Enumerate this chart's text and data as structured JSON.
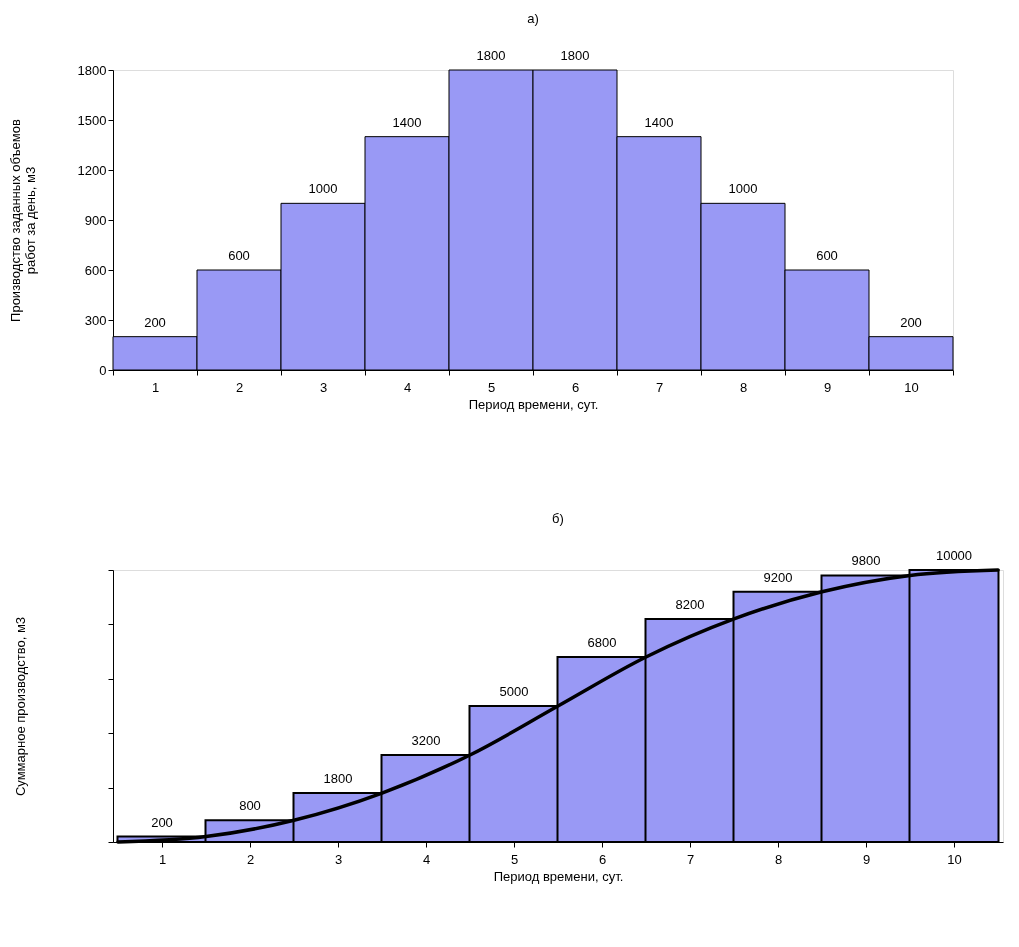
{
  "chart_data": [
    {
      "type": "bar",
      "title": "а)",
      "xlabel": "Период времени, сут.",
      "ylabel": "Производство заданных объемов работ за день, м3",
      "categories": [
        "1",
        "2",
        "3",
        "4",
        "5",
        "6",
        "7",
        "8",
        "9",
        "10"
      ],
      "values": [
        200,
        600,
        1000,
        1400,
        1800,
        1800,
        1400,
        1000,
        600,
        200
      ],
      "color": "#9999f5",
      "ylim": [
        0,
        1800
      ],
      "yticks": [
        0,
        300,
        600,
        900,
        1200,
        1500,
        1800
      ],
      "data_labels": true,
      "grid": false
    },
    {
      "type": "bar",
      "title": "б)",
      "xlabel": "Период времени, сут.",
      "ylabel": "Суммарное производство, м3",
      "x": [
        1,
        2,
        3,
        4,
        5,
        6,
        7,
        8,
        9,
        10
      ],
      "xlim": [
        0.5,
        10.5
      ],
      "xticks": [
        1,
        2,
        3,
        4,
        5,
        6,
        7,
        8,
        9,
        10
      ],
      "series": [
        {
          "type": "bar",
          "color": "#9999f5",
          "data_labels": true,
          "values": [
            200,
            800,
            1800,
            3200,
            5000,
            6800,
            8200,
            9200,
            9800,
            10000
          ]
        },
        {
          "type": "line",
          "color": "#000000",
          "x": [
            0.5,
            1.5,
            2.5,
            3.5,
            4.5,
            5.5,
            6.5,
            7.5,
            8.5,
            9.5,
            10.5
          ],
          "values": [
            0,
            200,
            800,
            1800,
            3200,
            5000,
            6800,
            8200,
            9200,
            9800,
            10000
          ]
        }
      ],
      "tick_labels": "x",
      "grid": false,
      "marker": "none",
      "line_style": "solid"
    }
  ]
}
